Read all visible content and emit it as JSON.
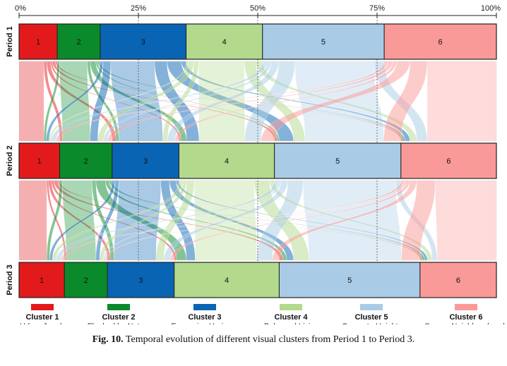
{
  "chart_data": {
    "type": "alluvial",
    "x_ticks": [
      "0%",
      "25%",
      "50%",
      "75%",
      "100%"
    ],
    "x_tick_values": [
      0,
      25,
      50,
      75,
      100
    ],
    "periods": [
      {
        "name": "Period 1",
        "shares": [
          8,
          9,
          18,
          16,
          25.5,
          23.5
        ]
      },
      {
        "name": "Period 2",
        "shares": [
          8.5,
          11,
          14,
          20,
          26.5,
          20
        ]
      },
      {
        "name": "Period 3",
        "shares": [
          9.5,
          9,
          14,
          22,
          29.5,
          16
        ]
      }
    ],
    "clusters": [
      {
        "id": "1",
        "name": "Cluster 1",
        "description": "Urban Jungle",
        "color": "#e31a1c"
      },
      {
        "id": "2",
        "name": "Cluster 2",
        "description": "Flanked by Nature",
        "color": "#0a8a2a"
      },
      {
        "id": "3",
        "name": "Cluster 3",
        "description": "Expansive Horizons",
        "color": "#0a64b4"
      },
      {
        "id": "4",
        "name": "Cluster 4",
        "description": "Balanced Living",
        "color": "#b2d98c"
      },
      {
        "id": "5",
        "name": "Cluster 5",
        "description": "Concrete Heights",
        "color": "#a9cbe6"
      },
      {
        "id": "6",
        "name": "Cluster 6",
        "description": "Sparse Neighbourhoods",
        "color": "#f99a98"
      }
    ],
    "flows_period1_to_period2": [
      [
        5.2,
        0.6,
        0.8,
        0.4,
        0.6,
        0.4
      ],
      [
        0.5,
        5.8,
        0.6,
        1.2,
        0.4,
        0.5
      ],
      [
        0.6,
        1.6,
        9.2,
        2.6,
        3.0,
        1.0
      ],
      [
        0.4,
        1.2,
        1.0,
        9.6,
        2.4,
        1.4
      ],
      [
        1.0,
        0.8,
        1.6,
        3.4,
        16.5,
        2.2
      ],
      [
        0.8,
        1.0,
        0.8,
        2.8,
        3.6,
        14.5
      ]
    ],
    "flows_period2_to_period3": [
      [
        5.8,
        0.4,
        0.6,
        0.5,
        0.8,
        0.4
      ],
      [
        0.6,
        6.2,
        0.8,
        2.0,
        0.8,
        0.6
      ],
      [
        0.6,
        0.8,
        8.8,
        1.8,
        1.4,
        0.6
      ],
      [
        0.8,
        0.8,
        1.6,
        12.6,
        3.2,
        1.0
      ],
      [
        1.0,
        0.4,
        1.4,
        3.2,
        19.4,
        1.1
      ],
      [
        0.7,
        0.4,
        0.8,
        1.4,
        3.9,
        12.8
      ]
    ]
  },
  "caption": {
    "label": "Fig. 10.",
    "text": "Temporal evolution of different visual clusters from Period 1 to Period 3."
  }
}
